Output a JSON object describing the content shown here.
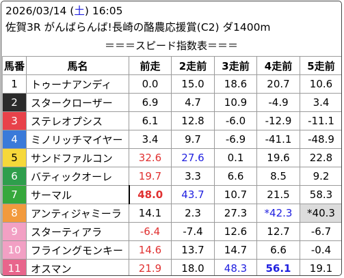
{
  "header": {
    "date": "2026/03/14",
    "paren_open": " (",
    "day_of_week": "土",
    "paren_close": ")",
    "time": " 16:05",
    "race": "佐賀3R がんばらんば!長崎の酪農応援賞(C2) ダ1400m",
    "index_title": "＝＝＝スピード指数表＝＝＝"
  },
  "columns": [
    "馬番",
    "馬名",
    "前走",
    "2走前",
    "3走前",
    "4走前",
    "5走前"
  ],
  "colors": {
    "text_red": "#e03030",
    "text_blue": "#2020e0",
    "shaded_cell": "#dcdcdc",
    "frame_1": "#ffffff",
    "frame_2": "#2b2b2b",
    "frame_3": "#e8424a",
    "frame_4": "#3a7ad9",
    "frame_5": "#f6d83a",
    "frame_6": "#2e9e4c",
    "frame_7": "#36a83c",
    "frame_8": "#f29a3d",
    "frame_9": "#f2a0c4",
    "frame_10": "#f2a0c4",
    "frame_11": "#e8658c"
  },
  "rows": [
    {
      "no": "1",
      "name": "トゥーナアンディ",
      "v": [
        "0.0",
        "15.0",
        "18.6",
        "20.7",
        "10.6"
      ]
    },
    {
      "no": "2",
      "name": "スタークローザー",
      "v": [
        "6.9",
        "4.7",
        "10.9",
        "-4.9",
        "3.4"
      ]
    },
    {
      "no": "3",
      "name": "ステレオプシス",
      "v": [
        "6.1",
        "12.8",
        "-6.0",
        "-12.9",
        "-11.1"
      ]
    },
    {
      "no": "4",
      "name": "ミノリッチマイヤー",
      "v": [
        "3.4",
        "9.7",
        "-6.9",
        "-41.1",
        "-48.9"
      ]
    },
    {
      "no": "5",
      "name": "サンドファルコン",
      "v": [
        "32.6",
        "27.6",
        "0.1",
        "19.6",
        "22.8"
      ]
    },
    {
      "no": "6",
      "name": "バティックオーレ",
      "v": [
        "19.7",
        "3.3",
        "6.6",
        "8.5",
        "9.2"
      ]
    },
    {
      "no": "7",
      "name": "サーマル",
      "v": [
        "48.0",
        "43.7",
        "10.7",
        "21.5",
        "58.3"
      ]
    },
    {
      "no": "8",
      "name": "アンティジャミーラ",
      "v": [
        "14.1",
        "2.3",
        "27.3",
        "*42.3",
        "*40.3"
      ]
    },
    {
      "no": "9",
      "name": "スターティアラ",
      "v": [
        "-6.4",
        "-7.4",
        "12.6",
        "12.7",
        "-6.7"
      ]
    },
    {
      "no": "10",
      "name": "フライングモンキー",
      "v": [
        "14.6",
        "13.7",
        "14.7",
        "6.6",
        "-0.4"
      ]
    },
    {
      "no": "11",
      "name": "オスマン",
      "v": [
        "21.9",
        "18.0",
        "48.3",
        "56.1",
        "19.1"
      ]
    }
  ]
}
